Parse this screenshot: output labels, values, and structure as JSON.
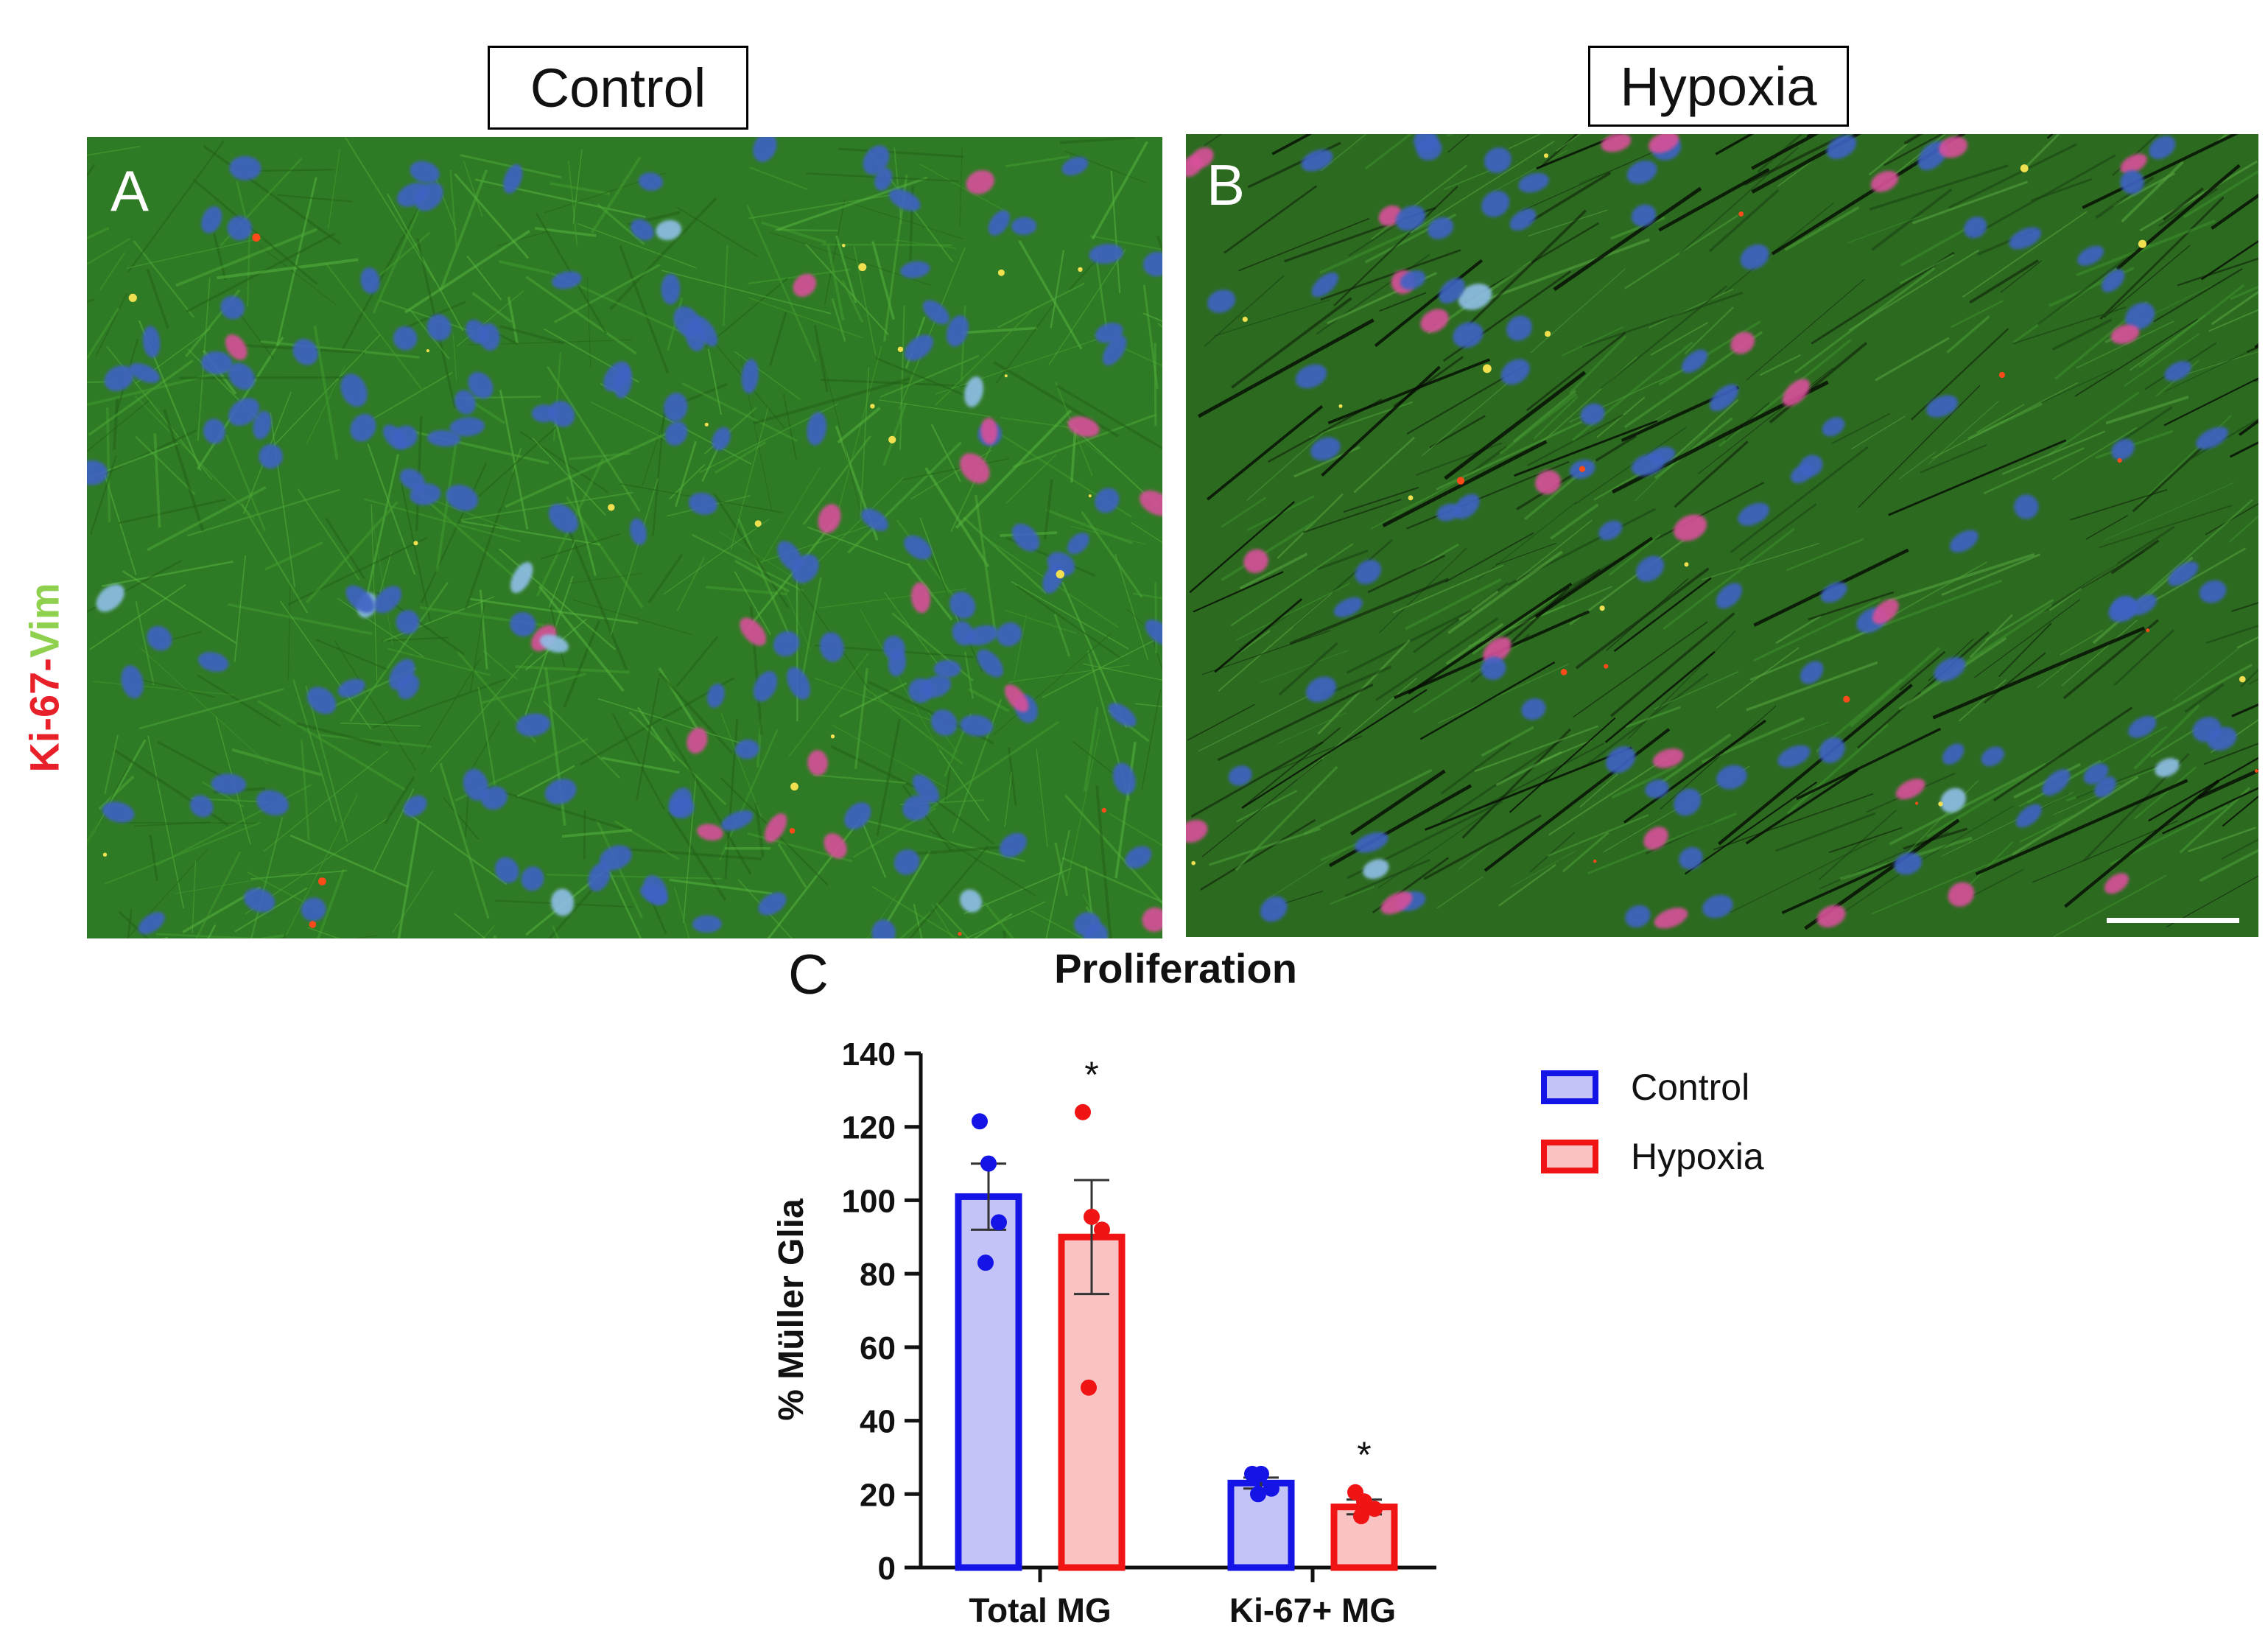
{
  "figure": {
    "stain_label": {
      "part1": "Ki-67",
      "separator": "-",
      "part2": "Vim",
      "color1": "#e8202a",
      "color2": "#8fd14f"
    },
    "panels": [
      {
        "letter": "A",
        "condition": "Control"
      },
      {
        "letter": "B",
        "condition": "Hypoxia"
      }
    ],
    "chart_letter": "C"
  },
  "chart_data": {
    "type": "bar",
    "title": "Proliferation",
    "xlabel": "",
    "ylabel": "% Müller Glia",
    "ylim": [
      0,
      140
    ],
    "yticks": [
      0,
      20,
      40,
      60,
      80,
      100,
      120,
      140
    ],
    "categories": [
      "Total MG",
      "Ki-67+ MG"
    ],
    "series": [
      {
        "name": "Control",
        "edge_color": "#1414e6",
        "fill_color": "#c3c3f7",
        "values": [
          101,
          23
        ],
        "sem": [
          9,
          1.5
        ],
        "points": [
          [
            121.5,
            110,
            94,
            83
          ],
          [
            25.5,
            25.5,
            21.5,
            20
          ]
        ]
      },
      {
        "name": "Hypoxia",
        "edge_color": "#f01414",
        "fill_color": "#f9c3c3",
        "values": [
          90,
          16.5
        ],
        "sem": [
          15.5,
          2
        ],
        "points": [
          [
            124,
            95.5,
            92,
            49
          ],
          [
            20.5,
            18,
            16,
            14
          ]
        ]
      }
    ],
    "annotations": [
      {
        "text": "*",
        "category": "Total MG",
        "series": "Hypoxia"
      },
      {
        "text": "*",
        "category": "Ki-67+ MG",
        "series": "Hypoxia"
      }
    ],
    "legend_position": "right",
    "grid": false
  }
}
